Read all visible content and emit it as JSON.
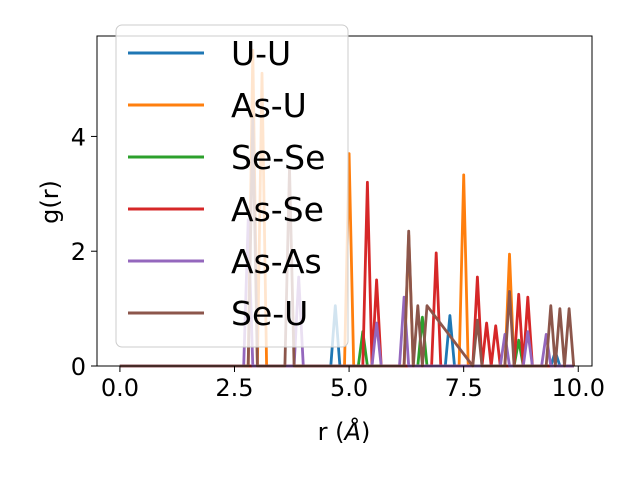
{
  "chart_data": {
    "type": "line",
    "xlabel": "r (",
    "xlabel_unit": "Å",
    "xlabel_close": ")",
    "ylabel": "g(r)",
    "xlim": [
      -0.5,
      10.3
    ],
    "ylim": [
      0,
      5.75
    ],
    "xticks": [
      0.0,
      2.5,
      5.0,
      7.5,
      10.0
    ],
    "xtick_labels": [
      "0.0",
      "2.5",
      "5.0",
      "7.5",
      "10.0"
    ],
    "yticks": [
      0,
      2,
      4
    ],
    "ytick_labels": [
      "0",
      "2",
      "4"
    ],
    "grid": false,
    "legend_position": "upper-left",
    "series": [
      {
        "name": "U-U",
        "color": "#1f77b4",
        "x": [
          0,
          4.6,
          4.7,
          4.8,
          7.1,
          7.2,
          7.3,
          9.4,
          9.5,
          9.6,
          9.9
        ],
        "y": [
          0,
          0,
          1.05,
          0,
          0,
          0.88,
          0,
          0,
          0.25,
          0,
          0
        ]
      },
      {
        "name": "As-U",
        "color": "#ff7f0e",
        "x": [
          0,
          2.8,
          2.9,
          3.0,
          3.1,
          3.2,
          4.9,
          5.0,
          5.1,
          6.2,
          6.3,
          6.4,
          7.4,
          7.5,
          7.6,
          8.4,
          8.5,
          8.6,
          9.9
        ],
        "y": [
          0,
          0,
          5.5,
          0,
          5.1,
          0,
          0,
          3.7,
          0,
          0,
          2.28,
          0,
          0,
          3.33,
          0,
          0,
          1.95,
          0,
          0
        ]
      },
      {
        "name": "Se-Se",
        "color": "#2ca02c",
        "x": [
          0,
          5.2,
          5.3,
          5.4,
          6.5,
          6.6,
          6.7,
          8.6,
          8.7,
          8.8,
          9.9
        ],
        "y": [
          0,
          0,
          0.6,
          0,
          0,
          0.85,
          0,
          0,
          0.45,
          0,
          0
        ]
      },
      {
        "name": "As-Se",
        "color": "#d62728",
        "x": [
          0,
          5.3,
          5.4,
          5.5,
          5.6,
          5.7,
          6.8,
          6.9,
          7.0,
          7.7,
          7.8,
          7.9,
          8.0,
          8.1,
          8.2,
          8.3,
          8.6,
          8.7,
          8.8,
          8.9,
          9.0,
          9.9
        ],
        "y": [
          0,
          0,
          3.2,
          0,
          1.5,
          0,
          0,
          1.97,
          0,
          0,
          1.55,
          0,
          0.75,
          0,
          0.7,
          0,
          0,
          1.25,
          0,
          1.2,
          0,
          0
        ]
      },
      {
        "name": "As-As",
        "color": "#9467bd",
        "x": [
          0,
          2.7,
          2.8,
          2.9,
          3.8,
          3.9,
          4.0,
          5.5,
          5.6,
          5.7,
          6.1,
          6.2,
          6.3,
          8.3,
          8.4,
          8.5,
          8.8,
          8.9,
          9.0,
          9.2,
          9.3,
          9.4,
          9.9
        ],
        "y": [
          0,
          0,
          2.55,
          0,
          0,
          1.55,
          0,
          0,
          0.75,
          0,
          0,
          1.2,
          0,
          0,
          0.55,
          0,
          0,
          0.6,
          0,
          0,
          0.55,
          0,
          0
        ]
      },
      {
        "name": "Se-U",
        "color": "#8c564b",
        "x": [
          0,
          2.8,
          2.9,
          3.0,
          3.6,
          3.7,
          3.8,
          6.2,
          6.3,
          6.4,
          6.5,
          6.6,
          6.7,
          7.7,
          7.8,
          7.9,
          8.4,
          8.5,
          8.6,
          9.3,
          9.4,
          9.5,
          9.6,
          9.7,
          9.8,
          9.9
        ],
        "y": [
          0,
          0,
          4.3,
          0,
          0,
          3.45,
          0,
          0,
          2.35,
          0,
          1.05,
          0,
          1.05,
          0,
          0.8,
          0,
          0,
          1.3,
          0,
          0,
          1.05,
          0,
          1.0,
          0,
          1.0,
          0
        ]
      }
    ]
  }
}
